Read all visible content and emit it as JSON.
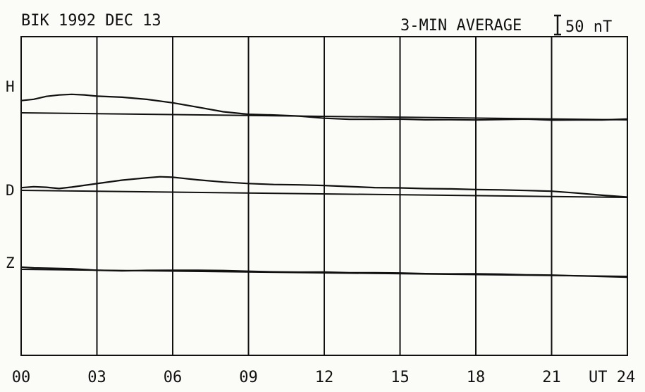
{
  "header": {
    "station_date": "BIK 1992 DEC 13",
    "average_label": "3-MIN AVERAGE",
    "scale_label": "50 nT"
  },
  "chart_data": {
    "type": "line",
    "x_unit": "UT hours",
    "xlim": [
      0,
      24
    ],
    "x_ticks": [
      0,
      3,
      6,
      9,
      12,
      15,
      18,
      21,
      24
    ],
    "x_tick_labels": [
      "00",
      "03",
      "06",
      "09",
      "12",
      "15",
      "18",
      "21",
      "UT 24"
    ],
    "scale_bar_nT": 50,
    "series": [
      {
        "name": "H",
        "x": [
          0,
          0.5,
          1,
          1.5,
          2,
          2.5,
          3,
          4,
          5,
          6,
          7,
          8,
          9,
          10,
          11,
          12,
          13,
          14,
          15,
          16,
          17,
          18,
          19,
          20,
          21,
          22,
          23,
          24
        ],
        "y": [
          32,
          36,
          44,
          48,
          50,
          49,
          46,
          44,
          39,
          31,
          20,
          9,
          3,
          2,
          0,
          -5,
          -7,
          -6,
          -5,
          -6,
          -5,
          -5,
          -3,
          -1,
          -3,
          -2,
          -1,
          2
        ]
      },
      {
        "name": "D",
        "x": [
          0,
          0.5,
          1,
          1.5,
          2,
          2.5,
          3,
          4,
          5,
          5.5,
          6,
          7,
          8,
          9,
          10,
          11,
          12,
          13,
          14,
          15,
          16,
          17,
          18,
          19,
          20,
          21,
          22,
          23,
          24
        ],
        "y": [
          7,
          10,
          9,
          6,
          10,
          15,
          20,
          30,
          37,
          40,
          39,
          33,
          28,
          25,
          23,
          23,
          22,
          20,
          18,
          18,
          17,
          17,
          16,
          16,
          15,
          14,
          10,
          5,
          1
        ]
      },
      {
        "name": "Z",
        "x": [
          0,
          0.5,
          1,
          2,
          3,
          4,
          5,
          6,
          7,
          8,
          9,
          10,
          11,
          12,
          13,
          14,
          15,
          16,
          17,
          18,
          19,
          20,
          21,
          22,
          23,
          24
        ],
        "y": [
          6,
          4,
          4,
          3,
          0,
          -1,
          1,
          2,
          3,
          3,
          2,
          1,
          1,
          2,
          1,
          2,
          2,
          1,
          1,
          2,
          2,
          1,
          1,
          0,
          -1,
          -2
        ]
      }
    ]
  }
}
